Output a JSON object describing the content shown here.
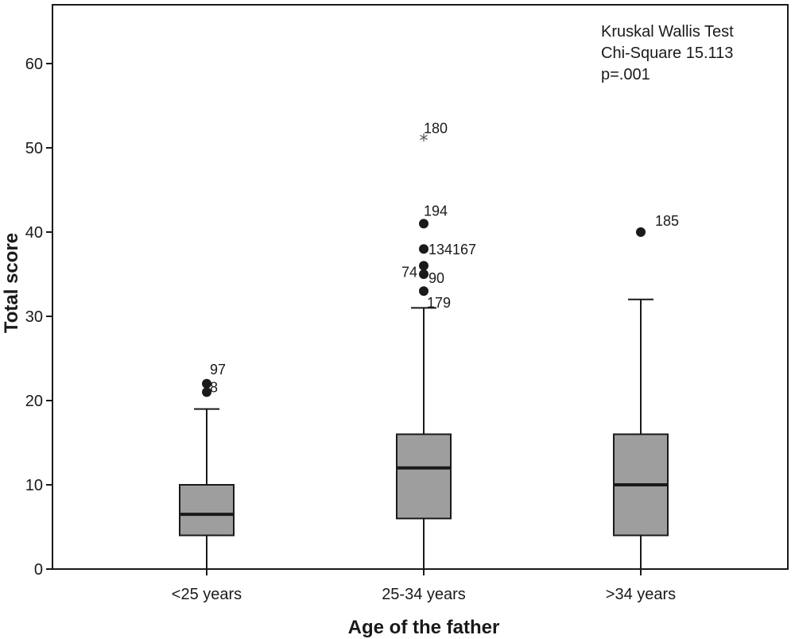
{
  "chart_data": {
    "type": "boxplot",
    "xlabel": "Age of the father",
    "ylabel": "Total score",
    "ylim": [
      0,
      65
    ],
    "yticks": [
      0,
      10,
      20,
      30,
      40,
      50,
      60
    ],
    "grid": false,
    "categories": [
      "<25 years",
      "25-34 years",
      ">34 years"
    ],
    "boxes": [
      {
        "category": "<25 years",
        "min": 0,
        "q1": 4,
        "median": 6.5,
        "q3": 10,
        "max": 19,
        "outliers": [
          {
            "value": 22,
            "label": "97",
            "marker": "circle"
          },
          {
            "value": 21,
            "label": "8",
            "marker": "circle"
          }
        ]
      },
      {
        "category": "25-34 years",
        "min": 0,
        "q1": 6,
        "median": 12,
        "q3": 16,
        "max": 31,
        "outliers": [
          {
            "value": 51,
            "label": "180",
            "marker": "star"
          },
          {
            "value": 41,
            "label": "194",
            "marker": "circle"
          },
          {
            "value": 38,
            "label": "134167",
            "marker": "circle"
          },
          {
            "value": 36,
            "label": "74",
            "marker": "circle"
          },
          {
            "value": 35,
            "label": "90",
            "marker": "circle"
          },
          {
            "value": 33,
            "label": "179",
            "marker": "circle"
          }
        ]
      },
      {
        "category": ">34 years",
        "min": 0,
        "q1": 4,
        "median": 10,
        "q3": 16,
        "max": 32,
        "outliers": [
          {
            "value": 40,
            "label": "185",
            "marker": "circle"
          }
        ]
      }
    ],
    "annotations": [
      "Kruskal Wallis Test",
      "Chi-Square 15.113",
      "p=.001"
    ],
    "colors": {
      "box_fill": "#9e9e9e",
      "line": "#1a1a1a",
      "background": "#ffffff"
    }
  }
}
